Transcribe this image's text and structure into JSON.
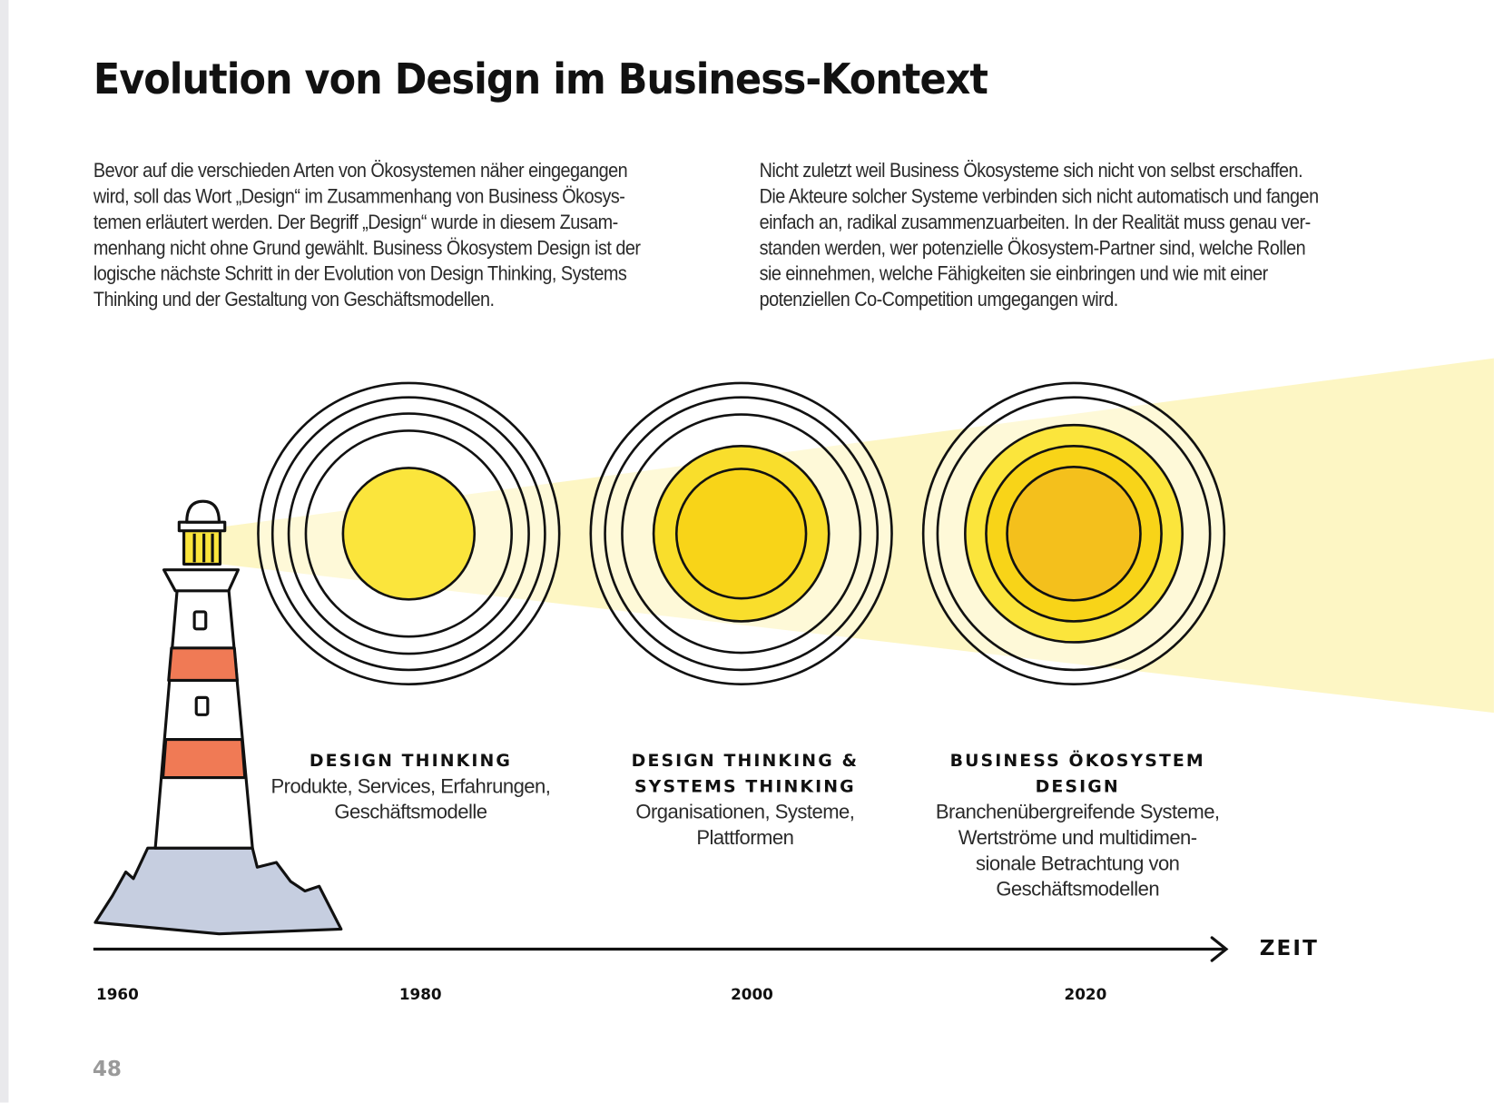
{
  "title": "Evolution von Design im Business-Kontext",
  "paragraphs": {
    "left": [
      "Bevor auf die verschieden Arten von Ökosystemen näher eingegangen",
      "wird, soll das Wort „Design“ im Zusammenhang von Business Ökosys-",
      "temen erläutert werden. Der Begriff „Design“ wurde in diesem Zusam-",
      "menhang nicht ohne Grund gewählt. Business Ökosystem Design ist der",
      "logische nächste Schritt in der Evolution von Design Thinking, Systems",
      "Thinking und der Gestaltung von Geschäftsmodellen."
    ],
    "right": [
      "Nicht zuletzt weil Business Ökosysteme sich nicht von selbst erschaffen.",
      "Die Akteure solcher Systeme verbinden sich nicht automatisch und fangen",
      "einfach an, radikal zusammenzuarbeiten. In der Realität muss genau ver-",
      "standen werden, wer potenzielle Ökosystem-Partner sind, welche Rollen",
      "sie einnehmen, welche Fähigkeiten sie einbringen und wie mit einer",
      "potenziellen Co-Competition umgegangen wird."
    ]
  },
  "stages": [
    {
      "heading": [
        "DESIGN THINKING"
      ],
      "description": [
        "Produkte, Services, Erfahrungen,",
        "Geschäftsmodelle"
      ]
    },
    {
      "heading": [
        "DESIGN THINKING &",
        "SYSTEMS THINKING"
      ],
      "description": [
        "Organisationen, Systeme,",
        "Plattformen"
      ]
    },
    {
      "heading": [
        "BUSINESS ÖKOSYSTEM",
        "DESIGN"
      ],
      "description": [
        "Branchenübergreifende Systeme,",
        "Wertströme und multidimen-",
        "sionale Betrachtung von",
        "Geschäftsmodellen"
      ]
    }
  ],
  "axis": {
    "label": "ZEIT",
    "years": [
      "1960",
      "1980",
      "2000",
      "2020"
    ]
  },
  "page_number": "48",
  "colors": {
    "beam": "#fdf6c4",
    "circle1": "#fbe53c",
    "circle2": "#f8d418",
    "circle3": "#f4c01c",
    "stripe": "#f07a55",
    "rock": "#c6cee0"
  }
}
